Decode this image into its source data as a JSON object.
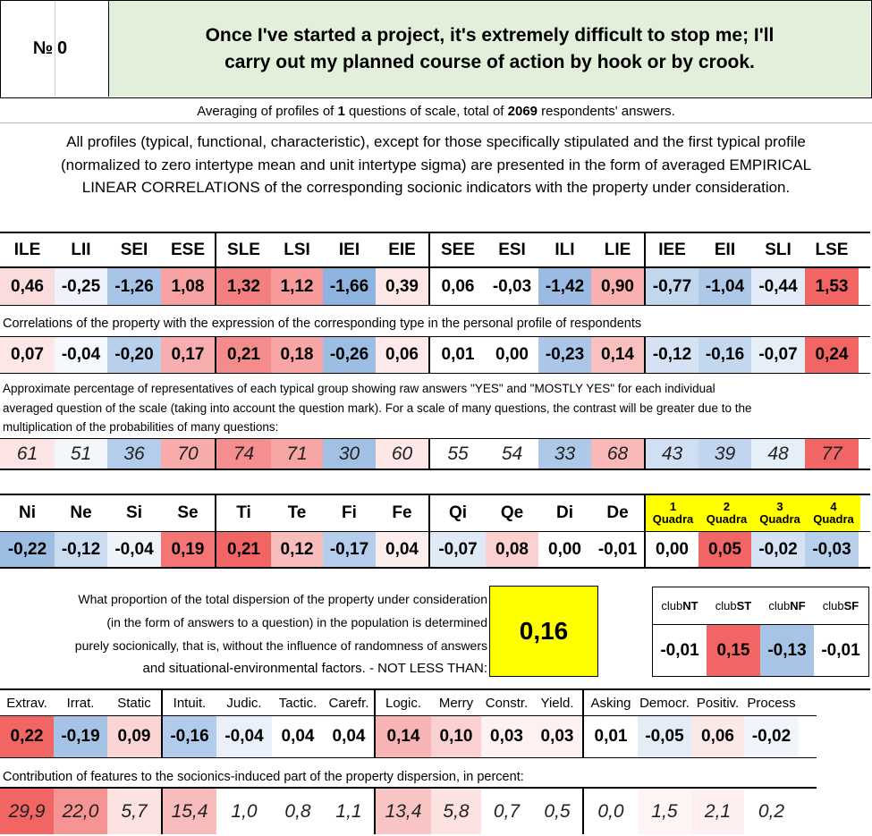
{
  "header": {
    "number_label": "№",
    "number": "0",
    "question_line1": "Once I've started a project, it's extremely difficult to stop me; I'll",
    "question_line2": "carry out my planned course of action by hook or by crook."
  },
  "averaging": {
    "prefix": "Averaging of profiles of ",
    "questions": "1",
    "middle": " questions of scale, total of ",
    "respondents": "2069",
    "suffix": " respondents' answers."
  },
  "description": {
    "line1": "All profiles (typical, functional, characteristic), except for those specifically stipulated and the first typical profile",
    "line2": "(normalized to zero intertype mean and unit intertype sigma) are presented in the form of averaged EMPIRICAL",
    "line3": "LINEAR CORRELATIONS of the corresponding socionic indicators with the property under consideration."
  },
  "types": [
    "ILE",
    "LII",
    "SEI",
    "ESE",
    "SLE",
    "LSI",
    "IEI",
    "EIE",
    "SEE",
    "ESI",
    "ILI",
    "LIE",
    "IEE",
    "EII",
    "SLI",
    "LSE"
  ],
  "type_profile": [
    "0,46",
    "-0,25",
    "-1,26",
    "1,08",
    "1,32",
    "1,12",
    "-1,66",
    "0,39",
    "0,06",
    "-0,03",
    "-1,42",
    "0,90",
    "-0,77",
    "-1,04",
    "-0,44",
    "1,53"
  ],
  "type_profile_colors": [
    "#fbdcdc",
    "#eef2fa",
    "#a7c3e6",
    "#f7a2a2",
    "#f47f7f",
    "#f69a9a",
    "#8eb3df",
    "#fce6e6",
    "#ffffff",
    "#ffffff",
    "#9bbbe2",
    "#f8b0b0",
    "#c2d6ee",
    "#aec8e7",
    "#e2ebf7",
    "#f26565"
  ],
  "correlation_note": "Correlations of the property with the expression of the corresponding type in the personal profile of respondents",
  "type_corr": [
    "0,07",
    "-0,04",
    "-0,20",
    "0,17",
    "0,21",
    "0,18",
    "-0,26",
    "0,06",
    "0,01",
    "0,00",
    "-0,23",
    "0,14",
    "-0,12",
    "-0,16",
    "-0,07",
    "0,24"
  ],
  "type_corr_colors": [
    "#fce6e6",
    "#f5f8fc",
    "#b9d0ec",
    "#f8aeae",
    "#f58c8c",
    "#f7a5a5",
    "#9dbde3",
    "#fde9e9",
    "#ffffff",
    "#ffffff",
    "#abc6e7",
    "#f9c0c0",
    "#d4e2f3",
    "#c3d7ee",
    "#e6eef8",
    "#f26565"
  ],
  "percent_note": {
    "line1": "Approximate percentage of representatives of each typical group showing raw answers \"YES\" and \"MOSTLY YES\" for each individual",
    "line2": "averaged question of the scale (taking into account the question mark). For a scale of many questions, the contrast will be greater due to the",
    "line3": "multiplication of the probabilities of many questions:"
  },
  "type_pct": [
    "61",
    "51",
    "36",
    "70",
    "74",
    "71",
    "30",
    "60",
    "55",
    "54",
    "33",
    "68",
    "43",
    "39",
    "48",
    "77"
  ],
  "type_pct_colors": [
    "#fce4e4",
    "#f3f6fb",
    "#b4cdeb",
    "#f8abab",
    "#f58f8f",
    "#f7a5a5",
    "#a2c0e4",
    "#fde7e7",
    "#ffffff",
    "#ffffff",
    "#aec8e7",
    "#f9b9b9",
    "#d0dff2",
    "#c1d5ee",
    "#e6eef8",
    "#f26565"
  ],
  "functions": [
    "Ni",
    "Ne",
    "Si",
    "Se",
    "Ti",
    "Te",
    "Fi",
    "Fe",
    "Qi",
    "Qe",
    "Di",
    "De"
  ],
  "function_vals": [
    "-0,22",
    "-0,12",
    "-0,04",
    "0,19",
    "0,21",
    "0,12",
    "-0,17",
    "0,04",
    "-0,07",
    "0,08",
    "0,00",
    "-0,01"
  ],
  "function_colors": [
    "#9dbde3",
    "#cbdcf1",
    "#eef3fa",
    "#f37575",
    "#f26565",
    "#f9bcbc",
    "#b4cdeb",
    "#fdeeee",
    "#e0eaf6",
    "#fbd1d1",
    "#ffffff",
    "#ffffff"
  ],
  "quadras": [
    {
      "num": "1",
      "label": "Quadra"
    },
    {
      "num": "2",
      "label": "Quadra"
    },
    {
      "num": "3",
      "label": "Quadra"
    },
    {
      "num": "4",
      "label": "Quadra"
    }
  ],
  "quadra_vals": [
    "0,00",
    "0,05",
    "-0,02",
    "-0,03"
  ],
  "quadra_colors": [
    "#ffffff",
    "#f26565",
    "#d4e2f3",
    "#b9d0ec"
  ],
  "dispersion_text": {
    "line1": "What proportion of the total dispersion of the property under consideration",
    "line2": "(in the form of answers to a question) in the population is determined",
    "line3": "purely socionically, that is, without the influence of randomness of answers",
    "line4": "and situational-environmental factors. - NOT LESS THAN:"
  },
  "dispersion_value": "0,16",
  "clubs": [
    {
      "prefix": "club",
      "code": "NT"
    },
    {
      "prefix": "club",
      "code": "ST"
    },
    {
      "prefix": "club",
      "code": "NF"
    },
    {
      "prefix": "club",
      "code": "SF"
    }
  ],
  "club_vals": [
    "-0,01",
    "0,15",
    "-0,13",
    "-0,01"
  ],
  "club_colors": [
    "#ffffff",
    "#f26565",
    "#a7c3e6",
    "#ffffff"
  ],
  "features": [
    "Extrav.",
    "Irrat.",
    "Static",
    "Intuit.",
    "Judic.",
    "Tactic.",
    "Carefr.",
    "Logic.",
    "Merry",
    "Constr.",
    "Yield.",
    "Asking",
    "Democr.",
    "Positiv.",
    "Process"
  ],
  "feature_vals": [
    "0,22",
    "-0,19",
    "0,09",
    "-0,16",
    "-0,04",
    "0,04",
    "0,04",
    "0,14",
    "0,10",
    "0,03",
    "0,03",
    "0,01",
    "-0,05",
    "0,06",
    "-0,02"
  ],
  "feature_colors": [
    "#f26565",
    "#a6c3e6",
    "#fbd4d4",
    "#b2cbea",
    "#eaf0f9",
    "#ffffff",
    "#ffffff",
    "#f8b4b4",
    "#fad0d0",
    "#fdf1f1",
    "#fdf1f1",
    "#ffffff",
    "#e4ecf7",
    "#fde8e8",
    "#f1f5fb"
  ],
  "contribution_note": "Contribution of features to the sociоnics-induced part of the property dispersion, in percent:",
  "contributions": [
    "29,9",
    "22,0",
    "5,7",
    "15,4",
    "1,0",
    "0,8",
    "1,1",
    "13,4",
    "5,8",
    "0,7",
    "0,5",
    "0,0",
    "1,5",
    "2,1",
    "0,2"
  ],
  "contribution_colors": [
    "#f26565",
    "#f69393",
    "#fde2e2",
    "#f9bcbc",
    "#ffffff",
    "#ffffff",
    "#ffffff",
    "#f9c4c4",
    "#fde2e2",
    "#ffffff",
    "#ffffff",
    "#ffffff",
    "#fef5f5",
    "#fef0f0",
    "#ffffff"
  ]
}
